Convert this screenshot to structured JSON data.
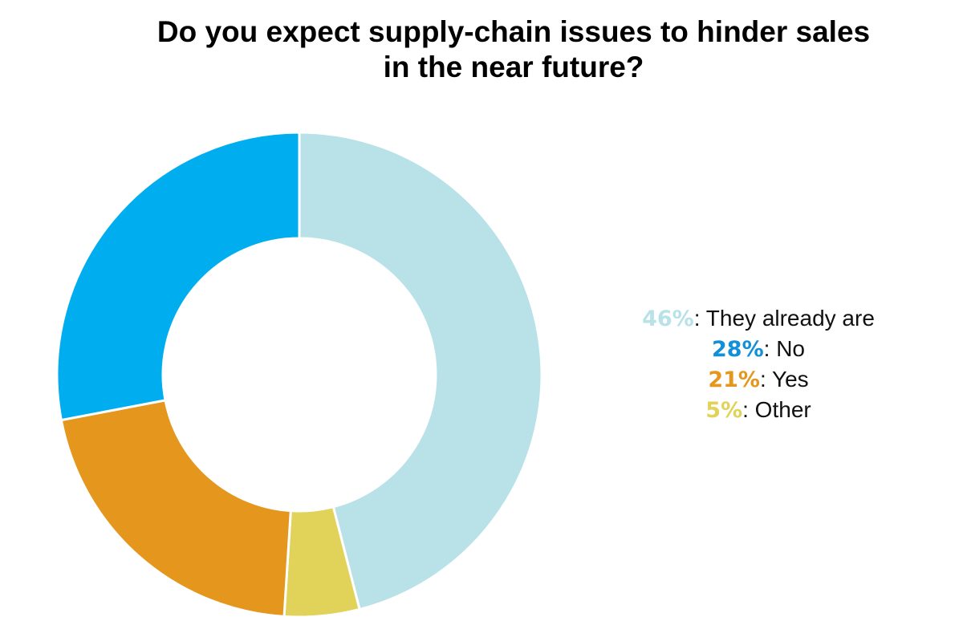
{
  "chart_data": {
    "type": "pie",
    "variant": "donut",
    "title": "Do you expect supply-chain issues to hinder sales in the near future?",
    "title_lines": [
      "Do you expect supply-chain issues to hinder sales",
      "in the near future?"
    ],
    "slices": [
      {
        "label": "They already are",
        "value": 46,
        "pct_label": "46%",
        "color": "#b8e2e8",
        "text_color": "#b8e2e8"
      },
      {
        "label": "Other",
        "value": 5,
        "pct_label": "5%",
        "color": "#e1d35a",
        "text_color": "#e1d35a"
      },
      {
        "label": "Yes",
        "value": 21,
        "pct_label": "21%",
        "color": "#e5961c",
        "text_color": "#e5961c"
      },
      {
        "label": "No",
        "value": 28,
        "pct_label": "28%",
        "color": "#00aeef",
        "text_color": "#1190d8"
      }
    ],
    "legend_order": [
      0,
      3,
      2,
      1
    ],
    "legend_placement": "right"
  }
}
